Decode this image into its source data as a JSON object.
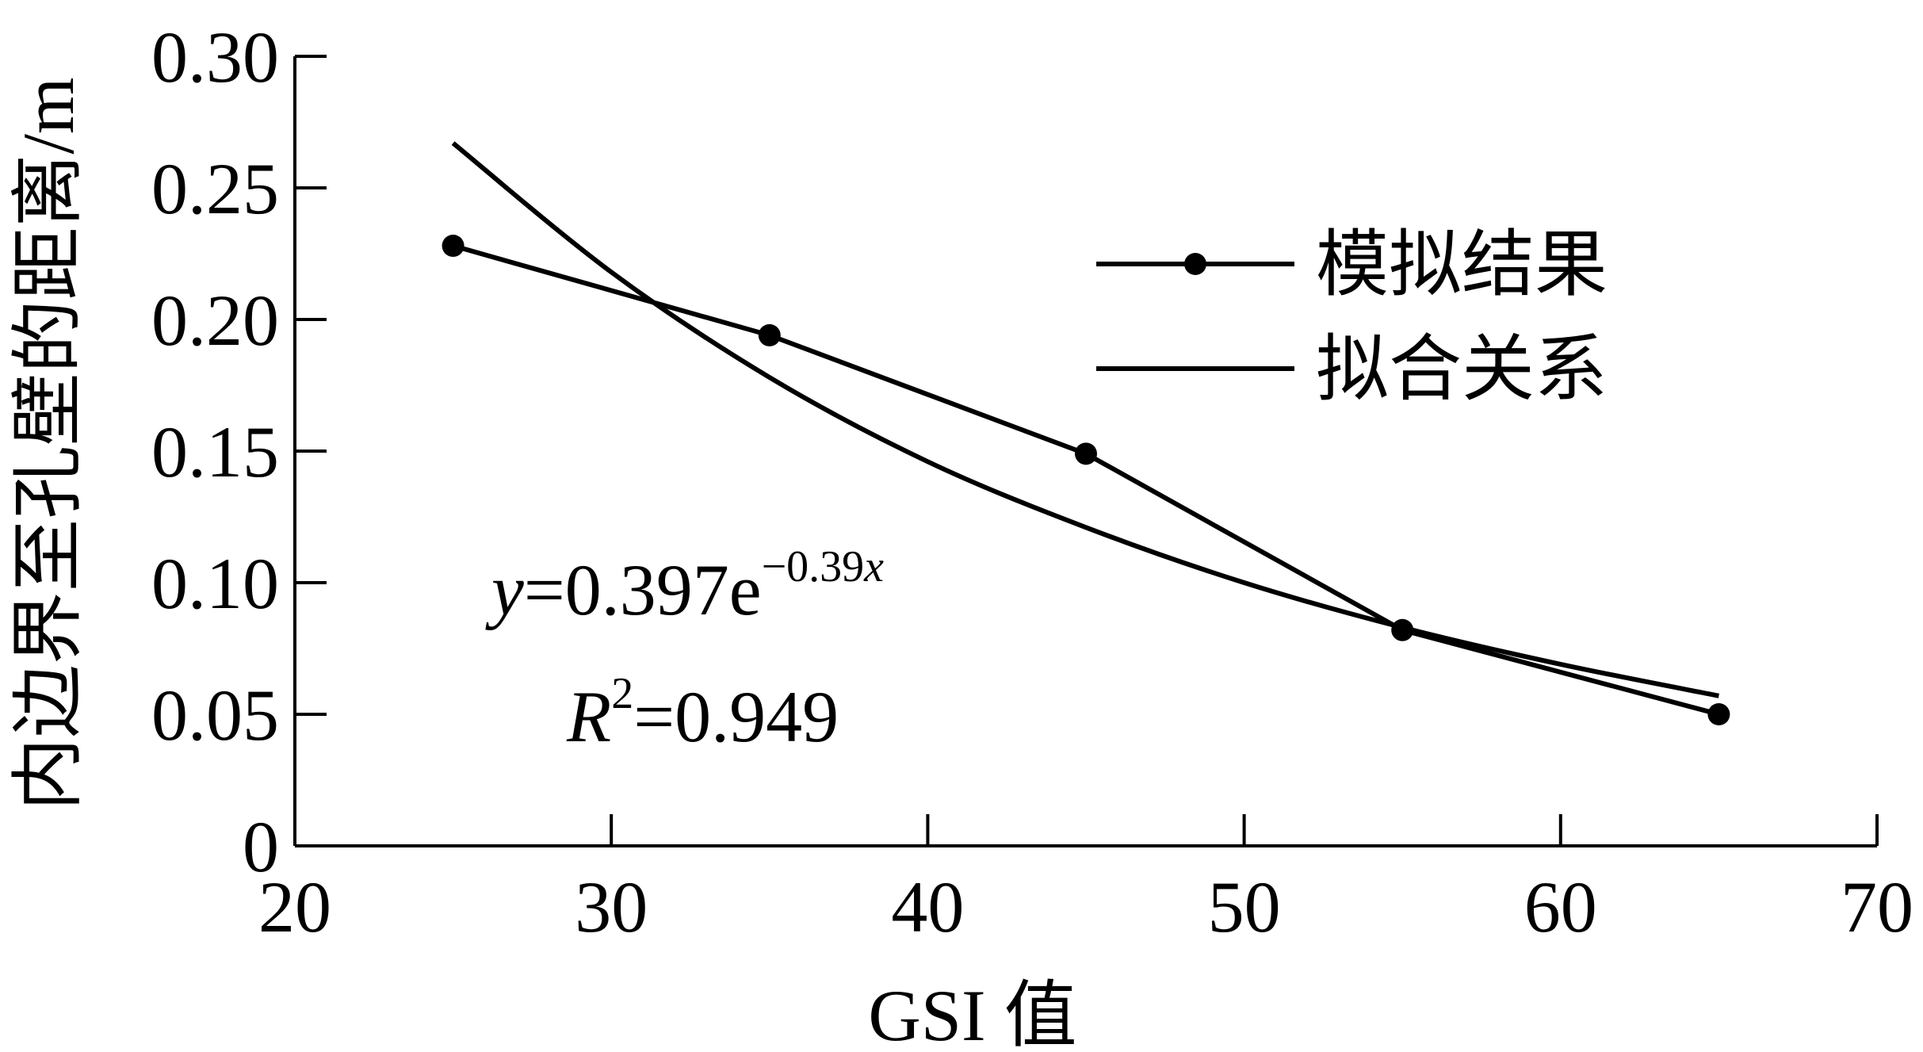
{
  "chart_data": {
    "type": "line",
    "xlabel": "GSI 值",
    "ylabel": "内边界至孔壁的距离/m",
    "xlim": [
      20,
      70
    ],
    "ylim": [
      0,
      0.3
    ],
    "x_ticks": [
      "20",
      "30",
      "40",
      "50",
      "60",
      "70"
    ],
    "y_ticks": [
      "0",
      "0.05",
      "0.10",
      "0.15",
      "0.20",
      "0.25",
      "0.30"
    ],
    "grid": false,
    "legend_position": "top-right",
    "series": [
      {
        "name": "模拟结果",
        "style": "line-with-markers",
        "x": [
          25,
          35,
          45,
          55,
          65
        ],
        "y": [
          0.228,
          0.194,
          0.149,
          0.082,
          0.05
        ]
      },
      {
        "name": "拟合关系",
        "style": "line",
        "x": [
          25,
          30,
          35,
          40,
          45,
          50,
          55,
          60,
          65
        ],
        "y": [
          0.267,
          0.218,
          0.178,
          0.146,
          0.121,
          0.1,
          0.083,
          0.069,
          0.057
        ]
      }
    ],
    "annotations": {
      "eq_y": "y",
      "eq_rhs": "=0.397e",
      "eq_exp_num": "−0.39",
      "eq_exp_var": "x",
      "r2_R": "R",
      "r2_sup": "2",
      "r2_rhs": "=0.949"
    },
    "colors": {
      "line": "#000000",
      "marker": "#000000"
    }
  }
}
